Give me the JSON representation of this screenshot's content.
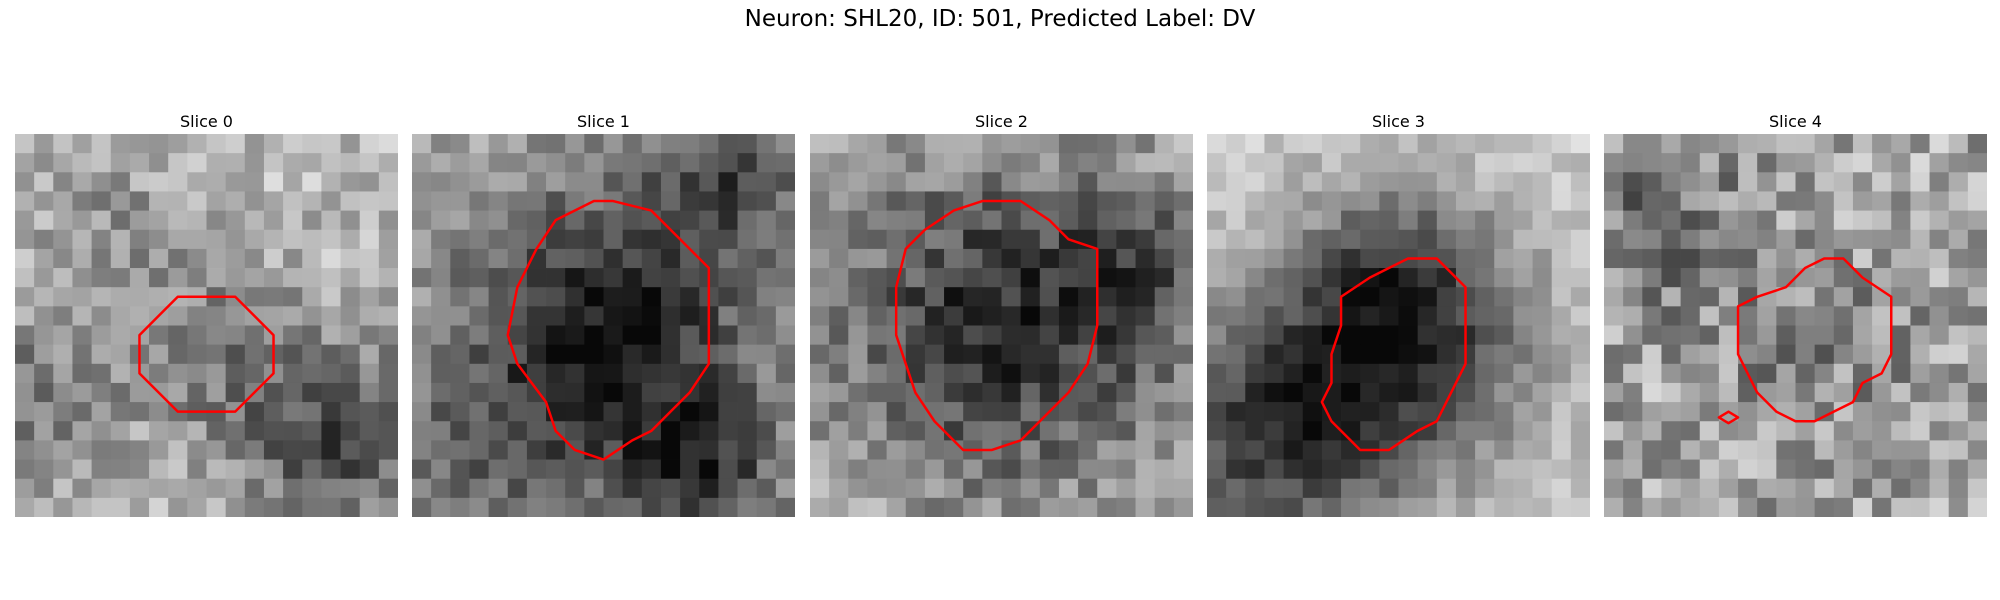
{
  "figure": {
    "title": "Neuron: SHL20, ID: 501, Predicted Label: DV"
  },
  "panels": [
    {
      "title": "Slice 0",
      "contours": [
        [
          [
            10.5,
            8.5
          ],
          [
            11.5,
            8.5
          ],
          [
            12.5,
            9.5
          ],
          [
            13.5,
            10.5
          ],
          [
            13.5,
            12.5
          ],
          [
            12.5,
            13.5
          ],
          [
            11.5,
            14.5
          ],
          [
            8.5,
            14.5
          ],
          [
            7.5,
            13.5
          ],
          [
            6.5,
            12.5
          ],
          [
            6.5,
            10.5
          ],
          [
            7.5,
            9.5
          ],
          [
            8.5,
            8.5
          ]
        ]
      ]
    },
    {
      "title": "Slice 1",
      "contours": [
        [
          [
            10.5,
            3.5
          ],
          [
            12.5,
            4
          ],
          [
            14.5,
            6
          ],
          [
            15.5,
            7
          ],
          [
            15.5,
            12
          ],
          [
            14.5,
            13.5
          ],
          [
            13.5,
            14.5
          ],
          [
            12.5,
            15.5
          ],
          [
            11.5,
            16
          ],
          [
            10,
            17
          ],
          [
            8.5,
            16.5
          ],
          [
            7.5,
            15.5
          ],
          [
            7,
            14
          ],
          [
            5.5,
            12
          ],
          [
            5,
            10.5
          ],
          [
            5.5,
            8
          ],
          [
            6.5,
            6
          ],
          [
            7.5,
            4.5
          ],
          [
            9.5,
            3.5
          ]
        ]
      ]
    },
    {
      "title": "Slice 2",
      "contours": [
        [
          [
            9,
            3.5
          ],
          [
            11,
            3.5
          ],
          [
            12.5,
            4.5
          ],
          [
            13.5,
            5.5
          ],
          [
            15,
            6
          ],
          [
            15,
            10
          ],
          [
            14.5,
            12
          ],
          [
            13.5,
            13.5
          ],
          [
            12,
            15
          ],
          [
            11,
            16
          ],
          [
            9.5,
            16.5
          ],
          [
            8,
            16.5
          ],
          [
            6.5,
            15
          ],
          [
            5.5,
            13.5
          ],
          [
            5,
            12
          ],
          [
            4.5,
            10.5
          ],
          [
            4.5,
            8
          ],
          [
            5,
            6
          ],
          [
            6,
            5
          ],
          [
            7.5,
            4
          ]
        ]
      ]
    },
    {
      "title": "Slice 3",
      "contours": [
        [
          [
            10.5,
            6.5
          ],
          [
            12,
            6.5
          ],
          [
            13,
            7.5
          ],
          [
            13.5,
            8
          ],
          [
            13.5,
            12
          ],
          [
            13,
            13
          ],
          [
            12.5,
            14
          ],
          [
            12,
            15
          ],
          [
            11,
            15.5
          ],
          [
            9.5,
            16.5
          ],
          [
            8,
            16.5
          ],
          [
            7.5,
            16
          ],
          [
            6.5,
            15
          ],
          [
            6,
            14
          ],
          [
            6.5,
            13
          ],
          [
            6.5,
            11.5
          ],
          [
            7,
            10
          ],
          [
            7,
            8.5
          ],
          [
            8.5,
            7.5
          ],
          [
            9.5,
            7
          ]
        ]
      ]
    },
    {
      "title": "Slice 4",
      "contours": [
        [
          [
            11.5,
            6.5
          ],
          [
            12.5,
            6.5
          ],
          [
            13.5,
            7.5
          ],
          [
            15,
            8.5
          ],
          [
            15,
            11.5
          ],
          [
            14.5,
            12.5
          ],
          [
            13.5,
            13
          ],
          [
            13,
            14
          ],
          [
            12,
            14.5
          ],
          [
            11,
            15
          ],
          [
            10,
            15
          ],
          [
            9,
            14.5
          ],
          [
            8,
            13.5
          ],
          [
            7.5,
            12.5
          ],
          [
            7,
            11.5
          ],
          [
            7,
            9
          ],
          [
            8,
            8.5
          ],
          [
            9.5,
            8
          ],
          [
            10.5,
            7
          ]
        ],
        [
          [
            6.5,
            14.5
          ],
          [
            7,
            14.8
          ],
          [
            6.5,
            15.1
          ],
          [
            6,
            14.8
          ]
        ]
      ]
    }
  ],
  "colors": {
    "contour": "#ff0000"
  }
}
